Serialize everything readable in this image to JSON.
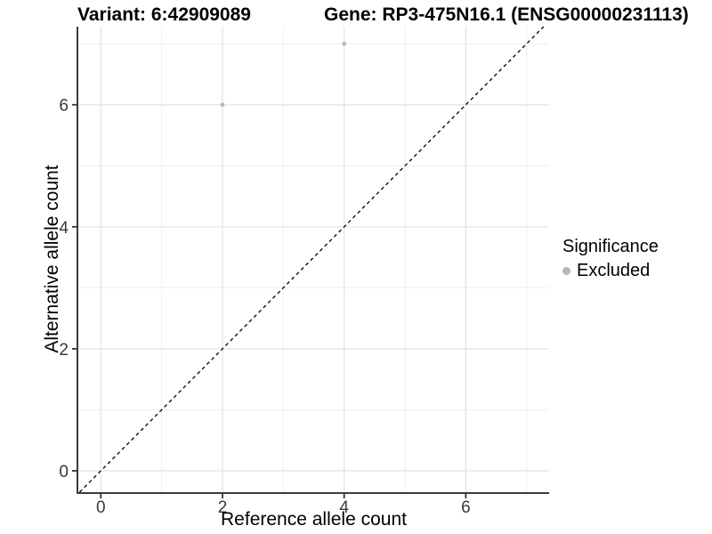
{
  "chart_data": {
    "type": "scatter",
    "title_left": "Variant: 6:42909089",
    "title_right": "Gene: RP3-475N16.1 (ENSG00000231113)",
    "xlabel": "Reference allele count",
    "ylabel": "Alternative allele count",
    "x_ticks": [
      0,
      2,
      4,
      6
    ],
    "y_ticks": [
      0,
      2,
      4,
      6
    ],
    "x_minor_ticks": [
      1,
      3,
      5,
      7
    ],
    "y_minor_ticks": [
      1,
      3,
      5,
      7
    ],
    "xlim": [
      -0.37,
      7.37
    ],
    "ylim": [
      -0.35,
      7.28
    ],
    "grid": true,
    "points": [
      {
        "x": 2,
        "y": 6,
        "significance": "Excluded"
      },
      {
        "x": 4,
        "y": 7,
        "significance": "Excluded"
      }
    ],
    "identity_line": {
      "slope": 1,
      "intercept": 0,
      "style": "dashed",
      "color": "#000000"
    },
    "legend": {
      "title": "Significance",
      "position": "right",
      "entries": [
        {
          "label": "Excluded",
          "color": "#b8b8b8"
        }
      ]
    },
    "colors": {
      "background": "#ffffff",
      "point": "#b8b8b8",
      "grid_major": "#e2e2e2",
      "grid_minor": "#efefef",
      "axis_line": "#3c3c3c",
      "tick_mark": "#333333",
      "tick_label": "#383838",
      "text": "#000000"
    }
  }
}
